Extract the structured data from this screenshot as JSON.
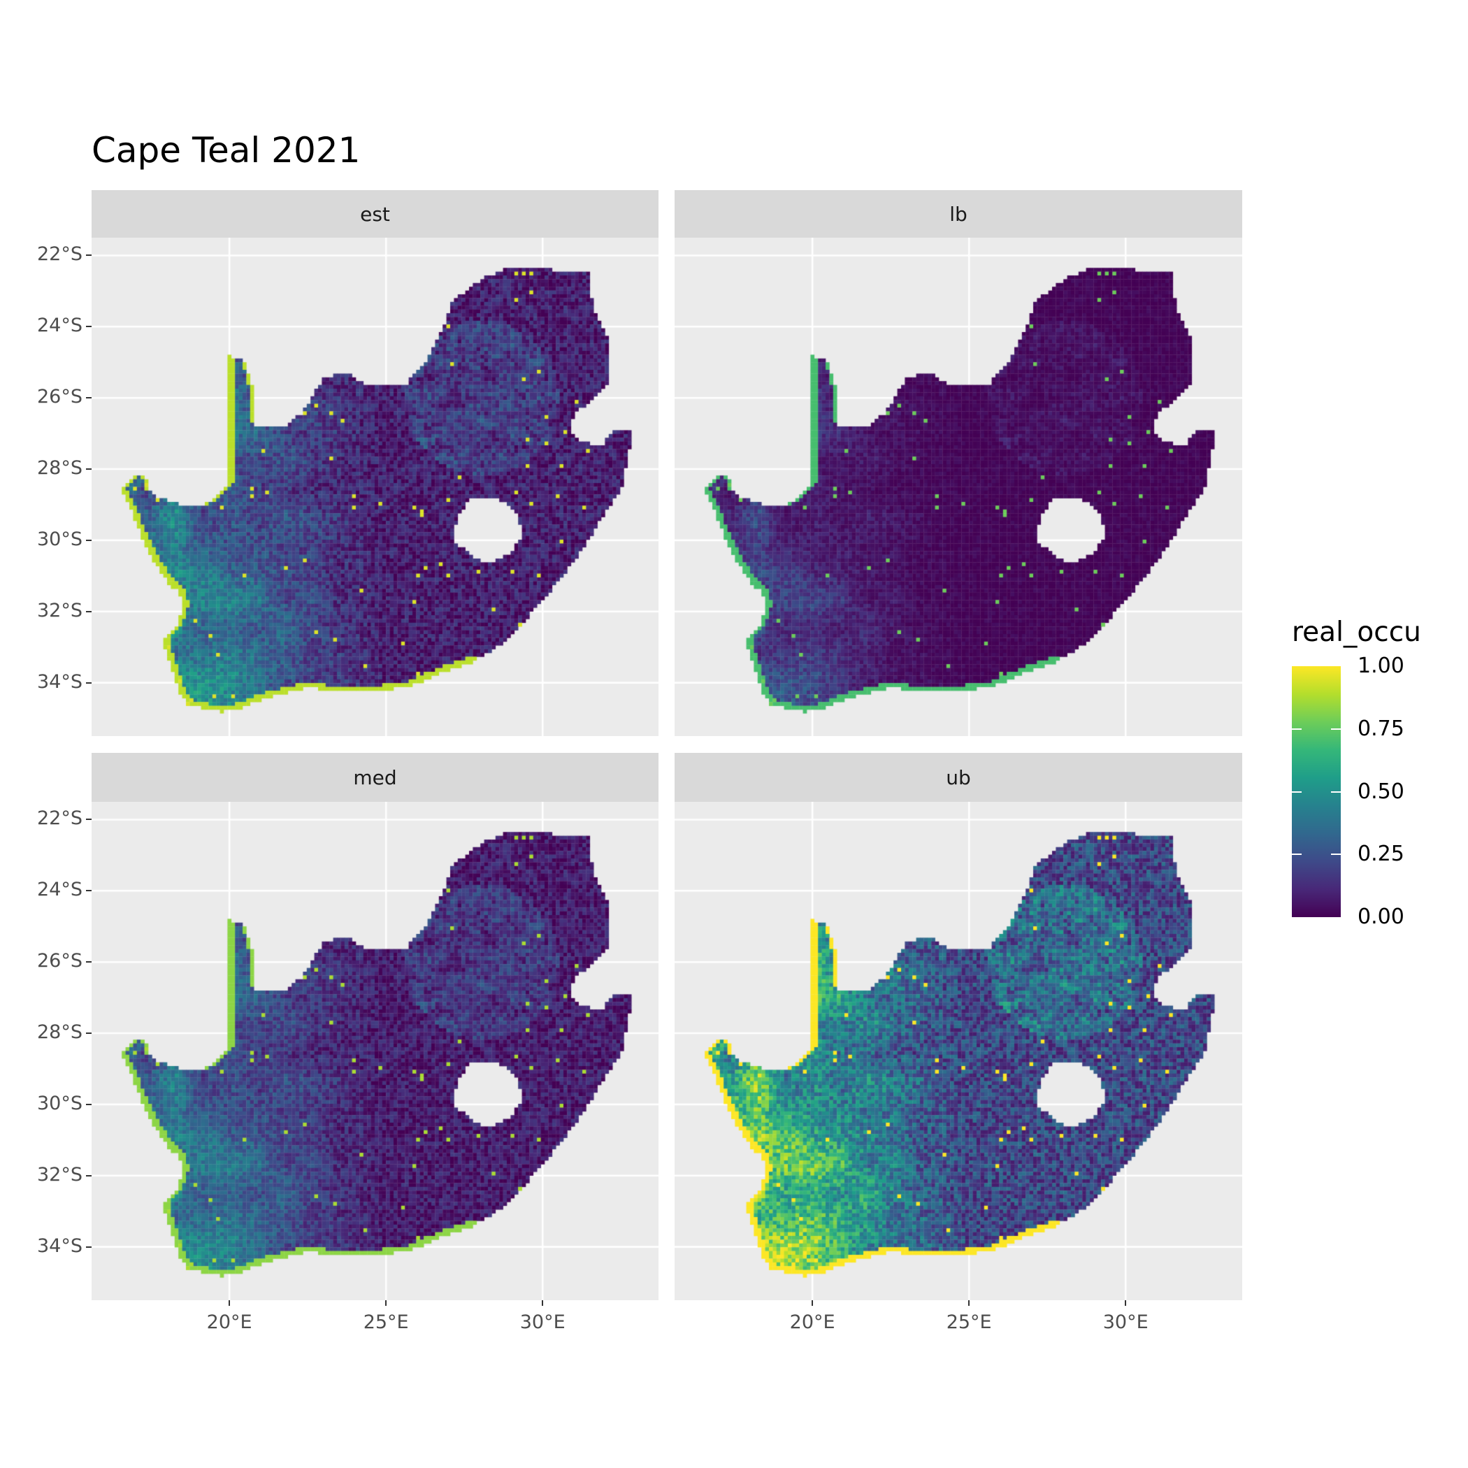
{
  "chart_data": {
    "type": "heatmap",
    "title": "Cape Teal 2021",
    "facets": [
      "est",
      "lb",
      "med",
      "ub"
    ],
    "facet_layout": "2x2",
    "x_axis": {
      "ticks": [
        20,
        25,
        30
      ],
      "tick_labels": [
        "20°E",
        "25°E",
        "30°E"
      ],
      "range": [
        15.6,
        33.7
      ]
    },
    "y_axis": {
      "ticks": [
        -22,
        -24,
        -26,
        -28,
        -30,
        -32,
        -34
      ],
      "tick_labels": [
        "22°S",
        "24°S",
        "26°S",
        "28°S",
        "30°S",
        "32°S",
        "34°S"
      ],
      "range": [
        -35.5,
        -21.5
      ]
    },
    "fill": {
      "name": "real_occu",
      "palette": "viridis",
      "range": [
        0,
        1
      ],
      "breaks": [
        1.0,
        0.75,
        0.5,
        0.25,
        0.0
      ],
      "break_labels": [
        "1.00",
        "0.75",
        "0.50",
        "0.25",
        "0.00"
      ],
      "colors": [
        "#440154",
        "#3E4A89",
        "#21908C",
        "#5DC863",
        "#FDE725"
      ]
    },
    "grid": true,
    "legend_position": "right",
    "panel_background": "#EBEBEB",
    "strip_background": "#D9D9D9"
  }
}
